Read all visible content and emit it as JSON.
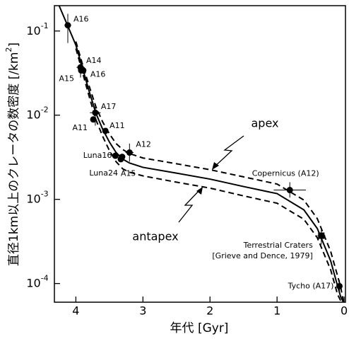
{
  "chart_data": {
    "type": "scatter",
    "xlabel": "年代 [Gyr]",
    "ylabel": [
      "直径1km以上のクレータの数密度 [/km",
      "2",
      "]"
    ],
    "xlim": [
      4.32,
      -0.02
    ],
    "xticks": [
      4,
      3,
      2,
      1,
      0
    ],
    "ylim": [
      6e-05,
      0.2
    ],
    "log_y": true,
    "yticks": [
      {
        "value": 0.1,
        "label": "10",
        "exponent": "-1"
      },
      {
        "value": 0.01,
        "label": "10",
        "exponent": "-2"
      },
      {
        "value": 0.001,
        "label": "10",
        "exponent": "-3"
      },
      {
        "value": 0.0001,
        "label": "10",
        "exponent": "-4"
      }
    ],
    "color": "#000000",
    "curve_x": [
      4.25,
      4.1,
      4.0,
      3.9,
      3.8,
      3.7,
      3.6,
      3.5,
      3.4,
      3.3,
      3.2,
      3.0,
      2.5,
      2.0,
      1.5,
      1.0,
      0.6,
      0.4,
      0.2,
      0.1,
      0.05,
      0.01
    ],
    "curves": [
      {
        "style": "solid",
        "values": [
          0.2,
          0.105,
          0.068,
          0.036,
          0.019,
          0.0105,
          0.0068,
          0.0048,
          0.0036,
          0.003,
          0.0027,
          0.0024,
          0.00205,
          0.00174,
          0.00142,
          0.00117,
          0.00075,
          0.00045,
          0.000185,
          9.5e-05,
          6.9e-05,
          6e-05
        ]
      },
      {
        "style": "dashed",
        "values": [
          null,
          null,
          0.075,
          0.04,
          0.022,
          0.0125,
          0.0083,
          0.006,
          0.0046,
          0.0039,
          0.0035,
          0.0031,
          0.00265,
          0.00225,
          0.00185,
          0.00152,
          0.00098,
          0.00059,
          0.00024,
          0.000125,
          9e-05,
          6e-05
        ]
      },
      {
        "style": "dashed",
        "values": [
          null,
          null,
          0.062,
          0.032,
          0.0165,
          0.0088,
          0.0056,
          0.0038,
          0.0028,
          0.0023,
          0.0021,
          0.0019,
          0.0016,
          0.00136,
          0.0011,
          0.0009,
          0.00058,
          0.00035,
          0.000145,
          7.5e-05,
          6.2e-05,
          null
        ]
      }
    ],
    "points": [
      {
        "label": "A16",
        "x": 4.12,
        "y": 0.117,
        "xerr": 0.05,
        "ylo": 0.072,
        "yhi": 0.16
      },
      {
        "label": "A14",
        "x": 3.93,
        "y": 0.037,
        "xerr": 0.06,
        "ylo": 0.028,
        "yhi": 0.047
      },
      {
        "label": "A16",
        "x": 3.89,
        "y": 0.034
      },
      {
        "label": "A15",
        "x": 3.92,
        "y": 0.034
      },
      {
        "label": "A17",
        "x": 3.71,
        "y": 0.0107,
        "xerr": 0.08,
        "ylo": 0.0075,
        "yhi": 0.0135
      },
      {
        "label": "A11",
        "x": 3.74,
        "y": 0.0089
      },
      {
        "label": "A11",
        "x": 3.56,
        "y": 0.0065
      },
      {
        "label": "Luna16",
        "x": 3.41,
        "y": 0.0033
      },
      {
        "label": "Luna24",
        "x": 3.33,
        "y": 0.003
      },
      {
        "label": "A15",
        "x": 3.31,
        "y": 0.0032
      },
      {
        "label": "A12",
        "x": 3.2,
        "y": 0.0036,
        "xerr": 0.06,
        "ylo": 0.0028,
        "yhi": 0.0046
      },
      {
        "label": "Copernicus (A12)",
        "x": 0.81,
        "y": 0.00129,
        "xerr": 0.24,
        "ylo": 0.00105,
        "yhi": 0.0016
      },
      {
        "label": "Terrestrial Craters",
        "note": "[Grieve and Dence, 1979]",
        "marker": "square",
        "x": 0.34,
        "y": 0.00037,
        "xerr": 0.06,
        "ylo": 0.00029,
        "yhi": 0.00046
      },
      {
        "label": "Tycho (A17)",
        "x": 0.07,
        "y": 9.3e-05,
        "ylo": 8e-05,
        "yhi": 0.00011
      }
    ],
    "annotations": [
      "apex",
      "antapex"
    ]
  }
}
